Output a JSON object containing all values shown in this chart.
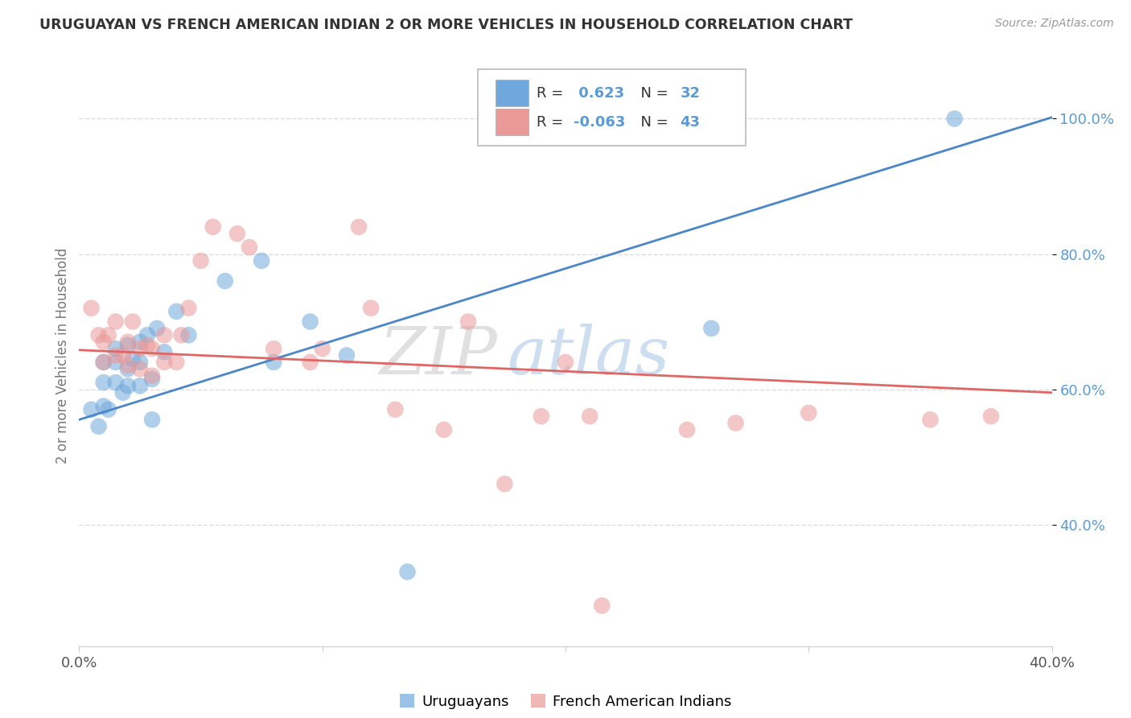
{
  "title": "URUGUAYAN VS FRENCH AMERICAN INDIAN 2 OR MORE VEHICLES IN HOUSEHOLD CORRELATION CHART",
  "source": "Source: ZipAtlas.com",
  "ylabel": "2 or more Vehicles in Household",
  "xlim": [
    0.0,
    0.4
  ],
  "ylim": [
    0.22,
    1.08
  ],
  "xticks": [
    0.0,
    0.1,
    0.2,
    0.3,
    0.4
  ],
  "xticklabels": [
    "0.0%",
    "",
    "",
    "",
    "40.0%"
  ],
  "yticks": [
    0.4,
    0.6,
    0.8,
    1.0
  ],
  "yticklabels": [
    "40.0%",
    "60.0%",
    "80.0%",
    "100.0%"
  ],
  "r_uruguayan": 0.623,
  "n_uruguayan": 32,
  "r_french_ai": -0.063,
  "n_french_ai": 43,
  "uruguayan_color": "#6fa8dc",
  "french_ai_color": "#ea9999",
  "trendline_uruguayan_color": "#4a86c8",
  "trendline_french_ai_color": "#e06666",
  "watermark_zip": "ZIP",
  "watermark_atlas": "atlas",
  "uruguayan_x": [
    0.005,
    0.008,
    0.01,
    0.01,
    0.01,
    0.012,
    0.015,
    0.015,
    0.015,
    0.018,
    0.02,
    0.02,
    0.02,
    0.022,
    0.025,
    0.025,
    0.025,
    0.028,
    0.03,
    0.03,
    0.032,
    0.035,
    0.04,
    0.045,
    0.06,
    0.075,
    0.08,
    0.095,
    0.11,
    0.135,
    0.26,
    0.36
  ],
  "uruguayan_y": [
    0.57,
    0.545,
    0.575,
    0.61,
    0.64,
    0.57,
    0.61,
    0.64,
    0.66,
    0.595,
    0.605,
    0.63,
    0.665,
    0.645,
    0.605,
    0.64,
    0.67,
    0.68,
    0.555,
    0.615,
    0.69,
    0.655,
    0.715,
    0.68,
    0.76,
    0.79,
    0.64,
    0.7,
    0.65,
    0.33,
    0.69,
    1.0
  ],
  "french_ai_x": [
    0.005,
    0.008,
    0.01,
    0.01,
    0.012,
    0.015,
    0.015,
    0.018,
    0.02,
    0.02,
    0.022,
    0.025,
    0.025,
    0.028,
    0.03,
    0.03,
    0.035,
    0.035,
    0.04,
    0.042,
    0.045,
    0.05,
    0.055,
    0.065,
    0.07,
    0.08,
    0.095,
    0.1,
    0.115,
    0.12,
    0.13,
    0.15,
    0.16,
    0.175,
    0.19,
    0.2,
    0.21,
    0.215,
    0.25,
    0.27,
    0.3,
    0.35,
    0.375
  ],
  "french_ai_y": [
    0.72,
    0.68,
    0.64,
    0.67,
    0.68,
    0.65,
    0.7,
    0.65,
    0.635,
    0.67,
    0.7,
    0.63,
    0.66,
    0.665,
    0.62,
    0.66,
    0.64,
    0.68,
    0.64,
    0.68,
    0.72,
    0.79,
    0.84,
    0.83,
    0.81,
    0.66,
    0.64,
    0.66,
    0.84,
    0.72,
    0.57,
    0.54,
    0.7,
    0.46,
    0.56,
    0.64,
    0.56,
    0.28,
    0.54,
    0.55,
    0.565,
    0.555,
    0.56
  ],
  "background_color": "#ffffff",
  "grid_color": "#dddddd"
}
